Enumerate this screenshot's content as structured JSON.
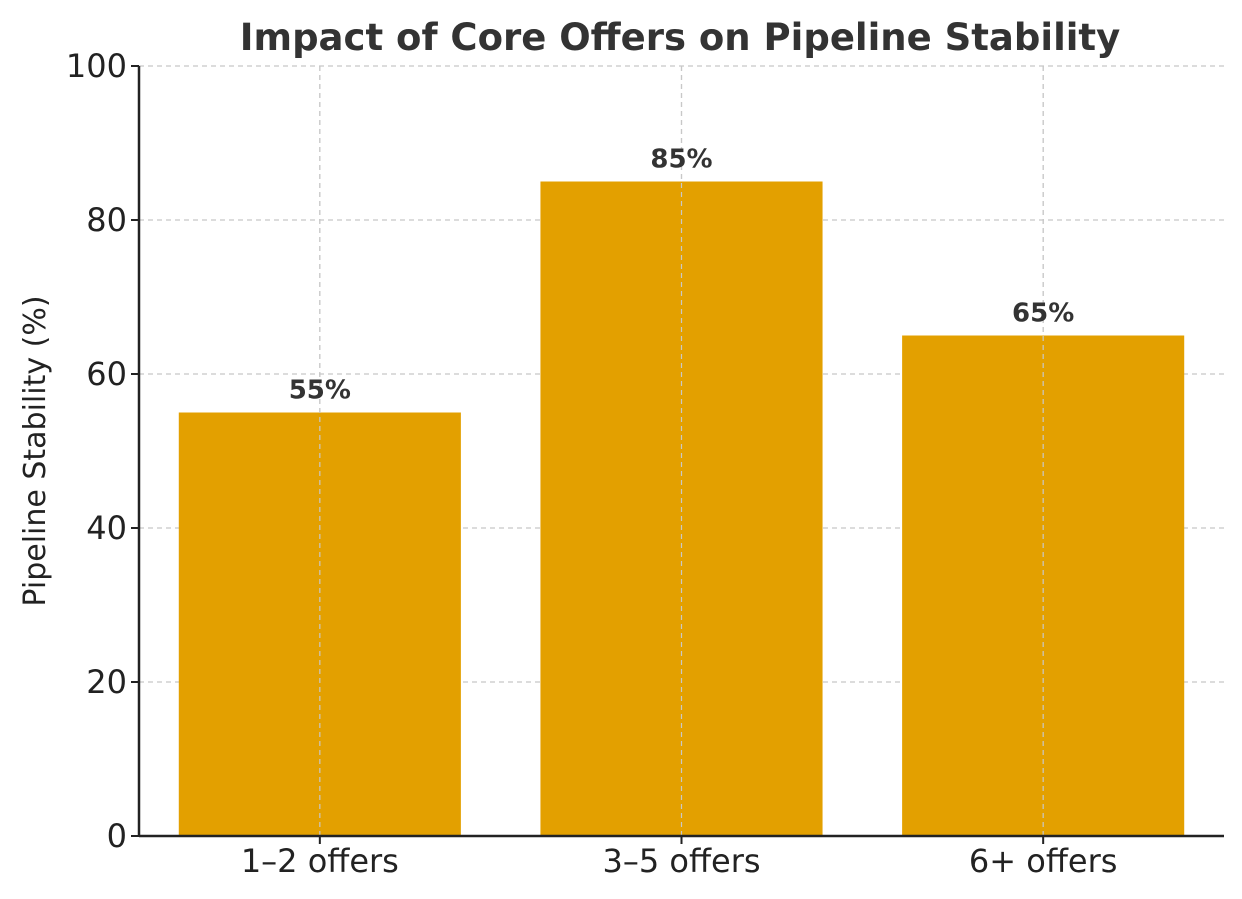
{
  "chart_data": {
    "type": "bar",
    "title": "Impact of Core Offers on Pipeline Stability",
    "xlabel": "",
    "ylabel": "Pipeline Stability (%)",
    "categories": [
      "1–2 offers",
      "3–5 offers",
      "6+ offers"
    ],
    "values": [
      55,
      85,
      65
    ],
    "data_labels": [
      "55%",
      "85%",
      "65%"
    ],
    "ylim": [
      0,
      100
    ],
    "yticks": [
      0,
      20,
      40,
      60,
      80,
      100
    ],
    "grid": true,
    "bar_color": "#E3A000"
  }
}
